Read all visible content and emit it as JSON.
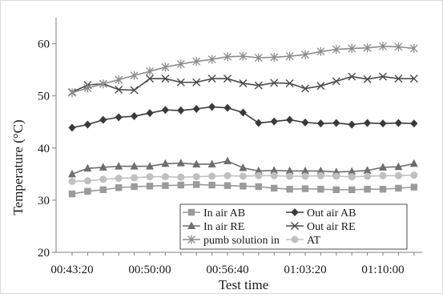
{
  "chart_data": {
    "type": "line",
    "title": "",
    "xlabel": "Test time",
    "ylabel": "Temperature (°C)",
    "ylim": [
      20,
      65
    ],
    "yticks": [
      20,
      30,
      40,
      50,
      60
    ],
    "x_tick_labels": [
      "00:43:20",
      "00:50:00",
      "00:56:40",
      "01:03:20",
      "01:10:00"
    ],
    "x": [
      "00:43:20",
      "00:44:40",
      "00:46:00",
      "00:47:20",
      "00:48:40",
      "00:50:00",
      "00:51:20",
      "00:52:40",
      "00:54:00",
      "00:55:20",
      "00:56:40",
      "00:58:00",
      "00:59:20",
      "01:00:40",
      "01:02:00",
      "01:03:20",
      "01:04:40",
      "01:06:00",
      "01:07:20",
      "01:08:40",
      "01:10:00",
      "01:11:20",
      "01:12:40"
    ],
    "grid": false,
    "legend_position": "bottom-right (inside plot)",
    "series": [
      {
        "name": "In air AB",
        "marker": "square",
        "color": "#9a9a9a",
        "values": [
          31.2,
          31.7,
          32.0,
          32.4,
          32.6,
          32.7,
          32.8,
          32.9,
          33.0,
          32.9,
          32.8,
          32.7,
          32.6,
          32.3,
          32.1,
          32.2,
          32.1,
          32.0,
          32.0,
          32.1,
          32.1,
          32.3,
          32.5
        ]
      },
      {
        "name": "Out air AB",
        "marker": "diamond",
        "color": "#3a3a3a",
        "values": [
          43.9,
          44.5,
          45.4,
          45.9,
          46.1,
          46.7,
          47.3,
          47.2,
          47.5,
          47.9,
          47.7,
          46.8,
          44.8,
          45.1,
          45.4,
          44.9,
          44.7,
          44.8,
          44.5,
          44.8,
          44.7,
          44.8,
          44.7
        ]
      },
      {
        "name": "In air RE",
        "marker": "triangle",
        "color": "#6e6e6e",
        "values": [
          35.0,
          36.1,
          36.3,
          36.5,
          36.5,
          36.5,
          37.0,
          37.1,
          36.9,
          36.9,
          37.5,
          36.2,
          35.6,
          35.7,
          35.6,
          35.6,
          35.6,
          35.4,
          35.5,
          35.7,
          36.3,
          36.4,
          37.0
        ]
      },
      {
        "name": "Out air RE",
        "marker": "x",
        "color": "#4a4a4a",
        "values": [
          50.7,
          52.1,
          52.3,
          51.2,
          51.1,
          53.3,
          53.3,
          52.6,
          52.6,
          53.3,
          53.3,
          52.4,
          52.0,
          52.5,
          52.4,
          51.4,
          51.9,
          52.8,
          53.7,
          53.2,
          53.7,
          53.3,
          53.3
        ]
      },
      {
        "name": "pumb solution in",
        "marker": "asterisk",
        "color": "#8c8c8c",
        "values": [
          50.6,
          51.5,
          52.3,
          53.1,
          53.9,
          54.7,
          55.5,
          56.1,
          56.6,
          57.0,
          57.5,
          57.6,
          57.3,
          57.4,
          57.6,
          57.9,
          58.5,
          58.9,
          59.1,
          59.2,
          59.5,
          59.4,
          59.1
        ]
      },
      {
        "name": "AT",
        "marker": "circle",
        "color": "#c0c0c0",
        "values": [
          33.6,
          33.7,
          34.0,
          34.2,
          34.3,
          34.5,
          34.5,
          34.4,
          34.5,
          34.6,
          34.7,
          34.6,
          34.7,
          34.7,
          34.6,
          34.6,
          34.7,
          34.6,
          34.5,
          34.6,
          34.7,
          34.7,
          34.8
        ]
      }
    ]
  }
}
